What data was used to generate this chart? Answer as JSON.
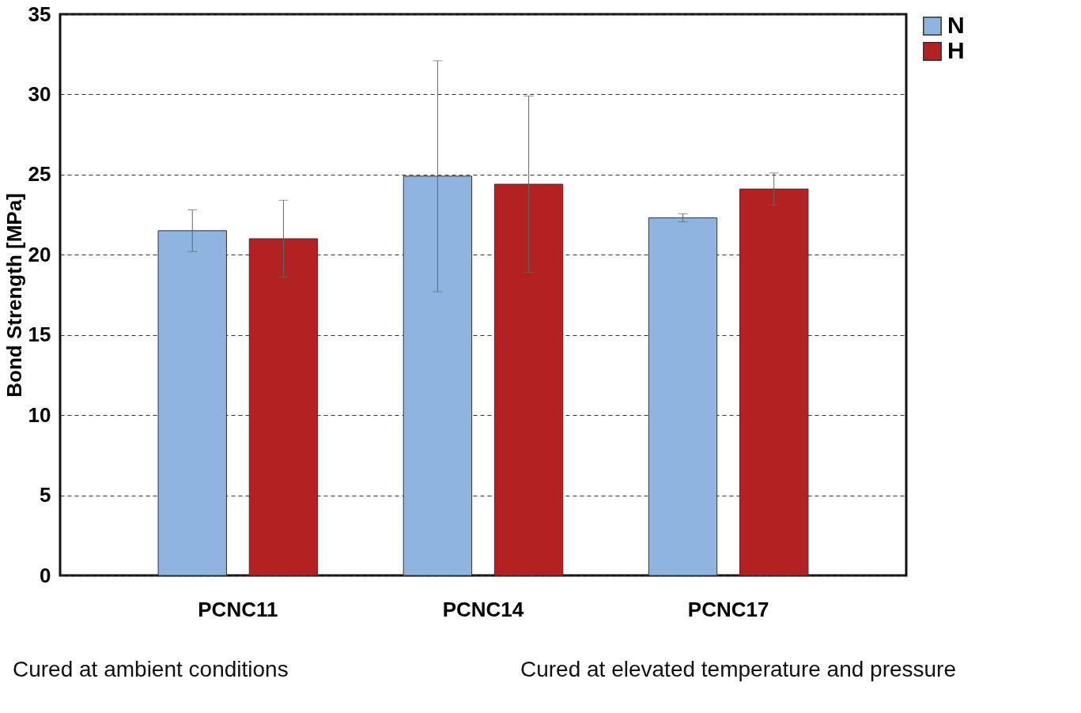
{
  "chart_data": {
    "type": "bar",
    "ylabel": "Bond Strength [MPa]",
    "categories": [
      "PCNC11",
      "PCNC14",
      "PCNC17"
    ],
    "series": [
      {
        "name": "N",
        "color": "#8fb4e0",
        "values": [
          21.5,
          24.9,
          22.3
        ],
        "errors": [
          1.3,
          7.2,
          0.25
        ]
      },
      {
        "name": "H",
        "color": "#b22222",
        "values": [
          21.0,
          24.4,
          24.1
        ],
        "errors": [
          2.4,
          5.5,
          1.0
        ]
      }
    ],
    "ylim": [
      0,
      35
    ],
    "yticks": [
      0,
      5,
      10,
      15,
      20,
      25,
      30,
      35
    ],
    "grid": "y",
    "legend": "right",
    "annotations": [
      "Cured at ambient conditions",
      "Cured at elevated temperature and pressure"
    ]
  }
}
